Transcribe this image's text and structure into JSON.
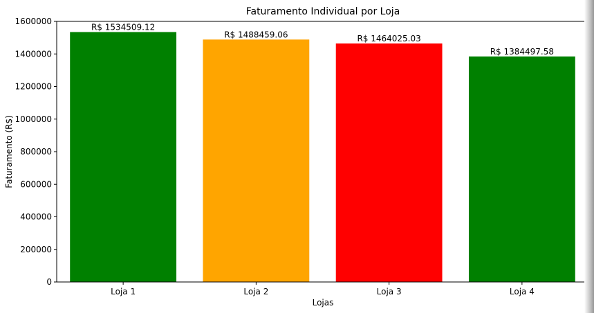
{
  "chart_data": {
    "type": "bar",
    "title": "Faturamento Individual por Loja",
    "xlabel": "Lojas",
    "ylabel": "Faturamento (R$)",
    "categories": [
      "Loja 1",
      "Loja 2",
      "Loja 3",
      "Loja 4"
    ],
    "values": [
      1534509.12,
      1488459.06,
      1464025.03,
      1384497.58
    ],
    "data_labels": [
      "R$ 1534509.12",
      "R$ 1488459.06",
      "R$ 1464025.03",
      "R$ 1384497.58"
    ],
    "colors": [
      "#008000",
      "#ffa500",
      "#ff0000",
      "#008000"
    ],
    "ylim": [
      0,
      1600000
    ],
    "yticks": [
      0,
      200000,
      400000,
      600000,
      800000,
      1000000,
      1200000,
      1400000,
      1600000
    ],
    "ytick_labels": [
      "0",
      "200000",
      "400000",
      "600000",
      "800000",
      "1000000",
      "1200000",
      "1400000",
      "1600000"
    ],
    "grid": false,
    "legend": "none"
  }
}
